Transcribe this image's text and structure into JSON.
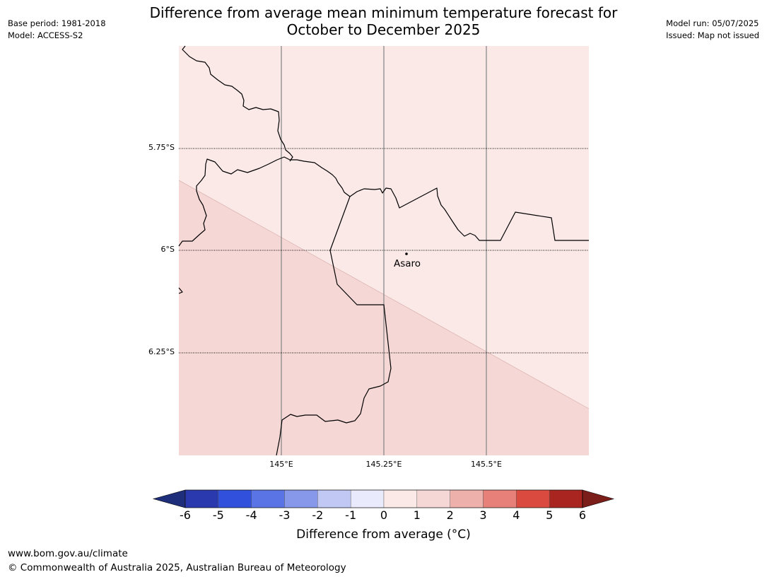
{
  "header": {
    "title_line1": "Difference from average mean minimum temperature forecast for",
    "title_line2": "October to December 2025",
    "base_period": "Base period: 1981-2018",
    "model": "Model: ACCESS-S2",
    "model_run": "Model run: 05/07/2025",
    "issued": "Issued: Map not issued"
  },
  "map": {
    "latitude_labels": [
      "5.75°S",
      "6°S",
      "6.25°S"
    ],
    "longitude_labels": [
      "145°E",
      "145.25°E",
      "145.5°E"
    ],
    "place": "Asaro",
    "regions": [
      {
        "name": "northeast",
        "category": "0 to 1",
        "color": "#fbe9e8"
      },
      {
        "name": "southwest",
        "category": "1 to 2",
        "color": "#f5d7d5"
      }
    ]
  },
  "colorbar": {
    "label": "Difference from average (°C)",
    "ticks": [
      "-6",
      "-5",
      "-4",
      "-3",
      "-2",
      "-1",
      "0",
      "1",
      "2",
      "3",
      "4",
      "5",
      "6"
    ],
    "under_color": "#1f2e7a",
    "over_color": "#7b1e1a",
    "colors": [
      "#2a3aae",
      "#3150dc",
      "#5a74e6",
      "#8797ea",
      "#c1c8f4",
      "#e9ebfc",
      "#fbe9e8",
      "#f5d7d5",
      "#eeb0ab",
      "#e68078",
      "#db4a3f",
      "#a8261f"
    ]
  },
  "footer": {
    "url": "www.bom.gov.au/climate",
    "copyright": "© Commonwealth of Australia 2025, Australian Bureau of Meteorology"
  }
}
